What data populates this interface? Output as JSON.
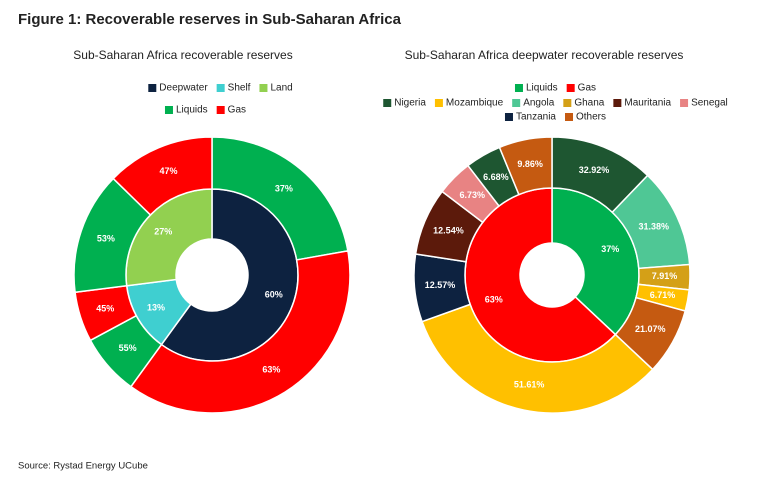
{
  "title": "Figure 1: Recoverable reserves in Sub-Saharan Africa",
  "source": "Source: Rystad Energy UCube",
  "chart_data": [
    {
      "type": "nested-donut",
      "title": "Sub-Saharan Africa recoverable reserves",
      "legend": [
        [
          {
            "name": "Deepwater",
            "color": "#0d2240"
          },
          {
            "name": "Shelf",
            "color": "#3fcfd0"
          },
          {
            "name": "Land",
            "color": "#92d050"
          }
        ],
        [
          {
            "name": "Liquids",
            "color": "#00b050"
          },
          {
            "name": "Gas",
            "color": "#ff0000"
          }
        ]
      ],
      "inner": {
        "names": [
          "Deepwater",
          "Shelf",
          "Land"
        ],
        "values": [
          60,
          13,
          27
        ],
        "value_labels": [
          "60%",
          "13%",
          "27%"
        ]
      },
      "outer": [
        {
          "names": [
            "Liquids",
            "Gas"
          ],
          "values": [
            37,
            63
          ],
          "value_labels": [
            "37%",
            "63%"
          ]
        },
        {
          "names": [
            "Liquids",
            "Gas"
          ],
          "values": [
            55,
            45
          ],
          "value_labels": [
            "55%",
            "45%"
          ]
        },
        {
          "names": [
            "Liquids",
            "Gas"
          ],
          "values": [
            53,
            47
          ],
          "value_labels": [
            "53%",
            "47%"
          ]
        }
      ]
    },
    {
      "type": "nested-donut",
      "title": "Sub-Saharan Africa deepwater recoverable reserves",
      "legend": [
        [
          {
            "name": "Liquids",
            "color": "#00b050"
          },
          {
            "name": "Gas",
            "color": "#ff0000"
          }
        ],
        [
          {
            "name": "Nigeria",
            "color": "#1e5631"
          },
          {
            "name": "Mozambique",
            "color": "#ffc000"
          },
          {
            "name": "Angola",
            "color": "#4fc795"
          },
          {
            "name": "Ghana",
            "color": "#d4a017"
          },
          {
            "name": "Mauritania",
            "color": "#5c1a0b"
          },
          {
            "name": "Senegal",
            "color": "#e88383"
          }
        ],
        [
          {
            "name": "Tanzania",
            "color": "#0d2240"
          },
          {
            "name": "Others",
            "color": "#c55a11"
          }
        ]
      ],
      "inner": {
        "names": [
          "Liquids",
          "Gas"
        ],
        "values": [
          37,
          63
        ],
        "value_labels": [
          "37%",
          "63%"
        ]
      },
      "outer": [
        {
          "names": [
            "Nigeria",
            "Angola",
            "Ghana",
            "Mozambique",
            "Others"
          ],
          "values": [
            32.92,
            31.38,
            7.91,
            6.71,
            21.07
          ],
          "value_labels": [
            "32.92%",
            "31.38%",
            "7.91%",
            "6.71%",
            "21.07%"
          ]
        },
        {
          "names": [
            "Mozambique",
            "Tanzania",
            "Mauritania",
            "Senegal",
            "Nigeria",
            "Others"
          ],
          "values": [
            51.61,
            12.57,
            12.54,
            6.73,
            6.68,
            9.86
          ],
          "value_labels": [
            "51.61%",
            "12.57%",
            "12.54%",
            "6.73%",
            "6.68%",
            "9.86%"
          ]
        }
      ]
    }
  ]
}
